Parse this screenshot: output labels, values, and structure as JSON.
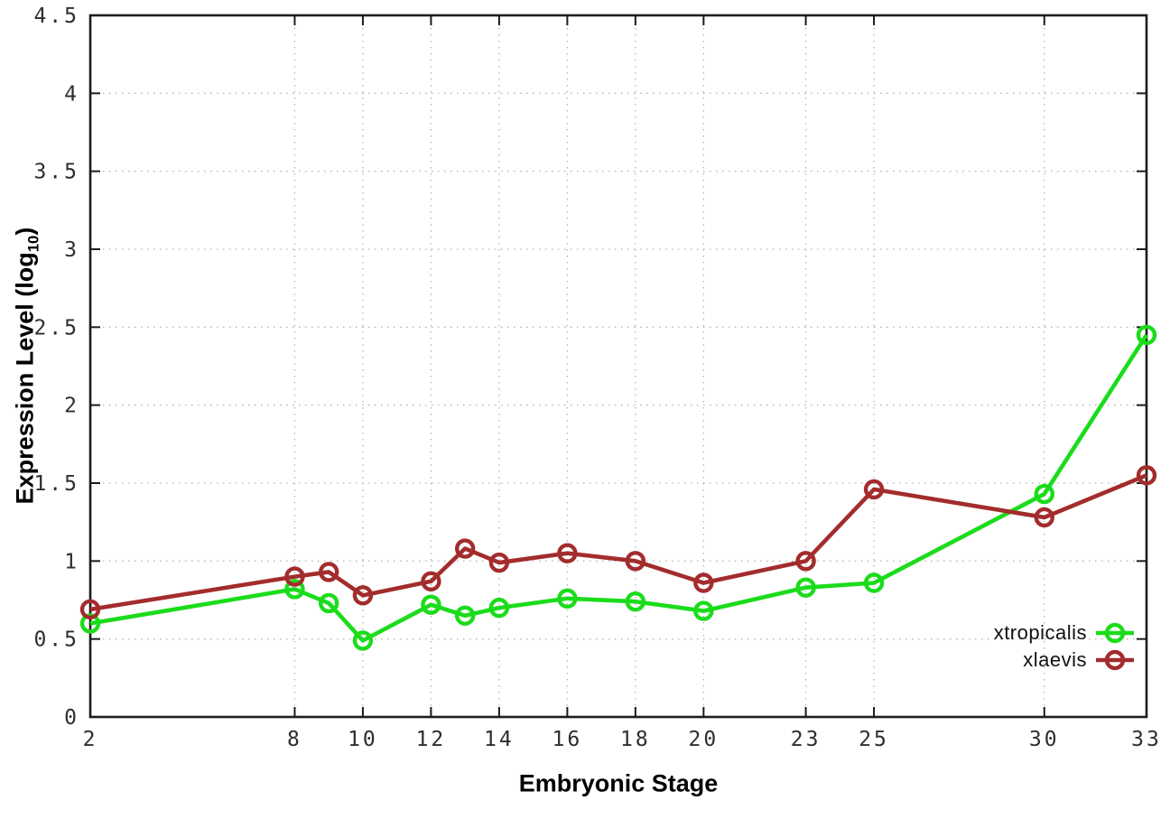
{
  "chart_data": {
    "type": "line",
    "title": "",
    "xlabel": "Embryonic Stage",
    "ylabel": "Expression Level (log10)",
    "ylabel_parts": {
      "prefix": "Expression Level (log",
      "sub": "10",
      "suffix": ")"
    },
    "x_axis": {
      "min": 2,
      "max": 33,
      "ticks": [
        2,
        8,
        10,
        12,
        14,
        16,
        18,
        20,
        23,
        25,
        30,
        33
      ]
    },
    "y_axis": {
      "min": 0,
      "max": 4.5,
      "ticks": [
        0,
        0.5,
        1,
        1.5,
        2,
        2.5,
        3,
        3.5,
        4,
        4.5
      ],
      "tick_labels": [
        "0",
        "0.5",
        "1",
        "1.5",
        "2",
        "2.5",
        "3",
        "3.5",
        "4",
        "4.5"
      ]
    },
    "grid": true,
    "legend_position": "inside-bottom-right",
    "x": [
      2,
      8,
      9,
      10,
      12,
      13,
      14,
      16,
      18,
      20,
      23,
      25,
      30,
      33
    ],
    "series": [
      {
        "name": "xtropicalis",
        "color": "#1bdc1b",
        "values": [
          0.6,
          0.82,
          0.73,
          0.49,
          0.72,
          0.65,
          0.7,
          0.76,
          0.74,
          0.68,
          0.83,
          0.86,
          1.43,
          2.45
        ]
      },
      {
        "name": "xlaevis",
        "color": "#a32c2c",
        "values": [
          0.69,
          0.9,
          0.93,
          0.78,
          0.87,
          1.08,
          0.99,
          1.05,
          1.0,
          0.86,
          1.0,
          1.46,
          1.28,
          1.55
        ]
      }
    ],
    "style": {
      "frame_color": "#1c1c1c",
      "grid_color": "#b5b5b5",
      "tick_text_color": "#2e2e2e",
      "line_width": 4.6,
      "marker_radius": 9,
      "marker_stroke": 4.4
    }
  }
}
